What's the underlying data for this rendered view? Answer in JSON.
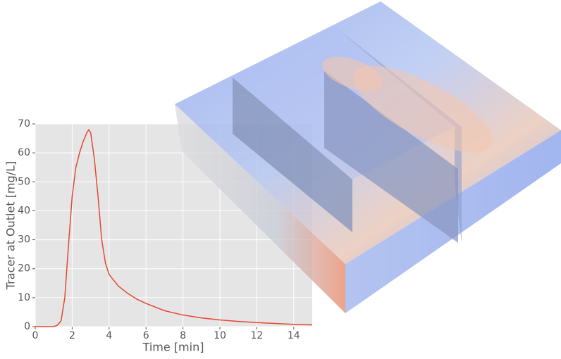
{
  "chart_data": {
    "type": "line",
    "x_label": "Time [min]",
    "y_label": "Tracer at Outlet [mg/L]",
    "series": [
      {
        "name": "tracer",
        "color": "#e24a33",
        "x": [
          0,
          1,
          1.2,
          1.4,
          1.6,
          1.8,
          2.0,
          2.2,
          2.4,
          2.6,
          2.8,
          2.9,
          3.0,
          3.2,
          3.4,
          3.6,
          3.8,
          4.0,
          4.5,
          5,
          5.5,
          6,
          7,
          8,
          9,
          10,
          11,
          12,
          13,
          14,
          15
        ],
        "values": [
          0,
          0,
          0.5,
          2,
          10,
          28,
          45,
          55,
          60,
          64,
          67,
          68,
          67,
          58,
          45,
          30,
          22,
          18,
          14,
          11.5,
          9.5,
          8,
          5.5,
          4,
          3,
          2.3,
          1.8,
          1.4,
          1.1,
          0.8,
          0.6
        ]
      }
    ],
    "xlim": [
      0,
      15
    ],
    "xticks": [
      0,
      2,
      4,
      6,
      8,
      10,
      12,
      14
    ],
    "ylim": [
      0,
      70
    ],
    "yticks": [
      0,
      10,
      20,
      30,
      40,
      50,
      60,
      70
    ],
    "grid": true
  }
}
